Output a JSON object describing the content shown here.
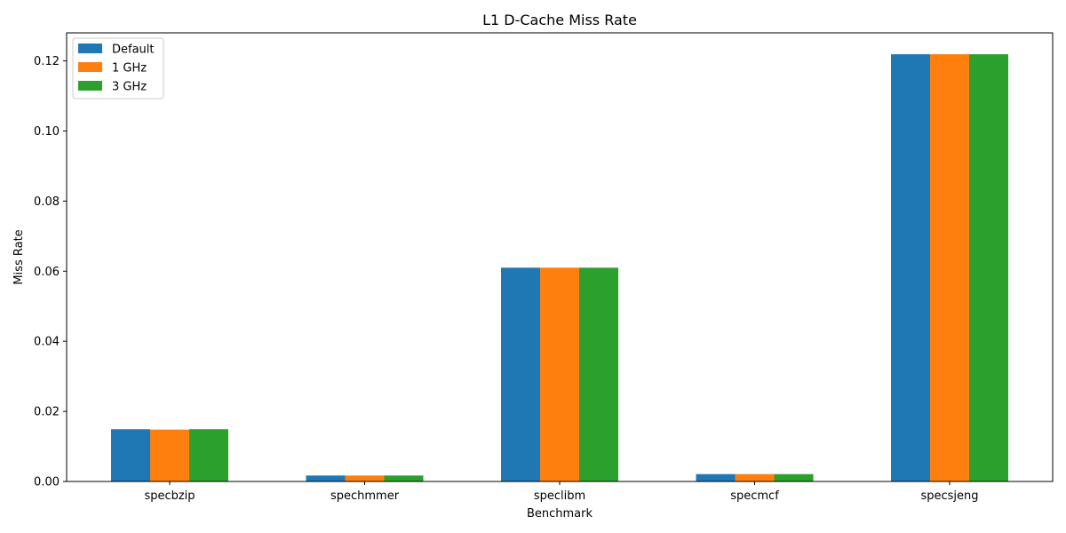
{
  "chart_data": {
    "type": "bar",
    "title": "L1 D-Cache Miss Rate",
    "xlabel": "Benchmark",
    "ylabel": "Miss Rate",
    "categories": [
      "specbzip",
      "spechmmer",
      "speclibm",
      "specmcf",
      "specsjeng"
    ],
    "series": [
      {
        "name": "Default",
        "color": "#1f77b4",
        "values": [
          0.0149,
          0.0017,
          0.061,
          0.0021,
          0.1219
        ]
      },
      {
        "name": "1 GHz",
        "color": "#ff7f0e",
        "values": [
          0.0148,
          0.0017,
          0.061,
          0.0021,
          0.1219
        ]
      },
      {
        "name": "3 GHz",
        "color": "#2ca02c",
        "values": [
          0.0149,
          0.0017,
          0.061,
          0.0021,
          0.1219
        ]
      }
    ],
    "ylim": [
      0,
      0.128
    ],
    "yticks": [
      "0.00",
      "0.02",
      "0.04",
      "0.06",
      "0.08",
      "0.10",
      "0.12"
    ],
    "legend_position": "upper-left",
    "grid": false
  }
}
